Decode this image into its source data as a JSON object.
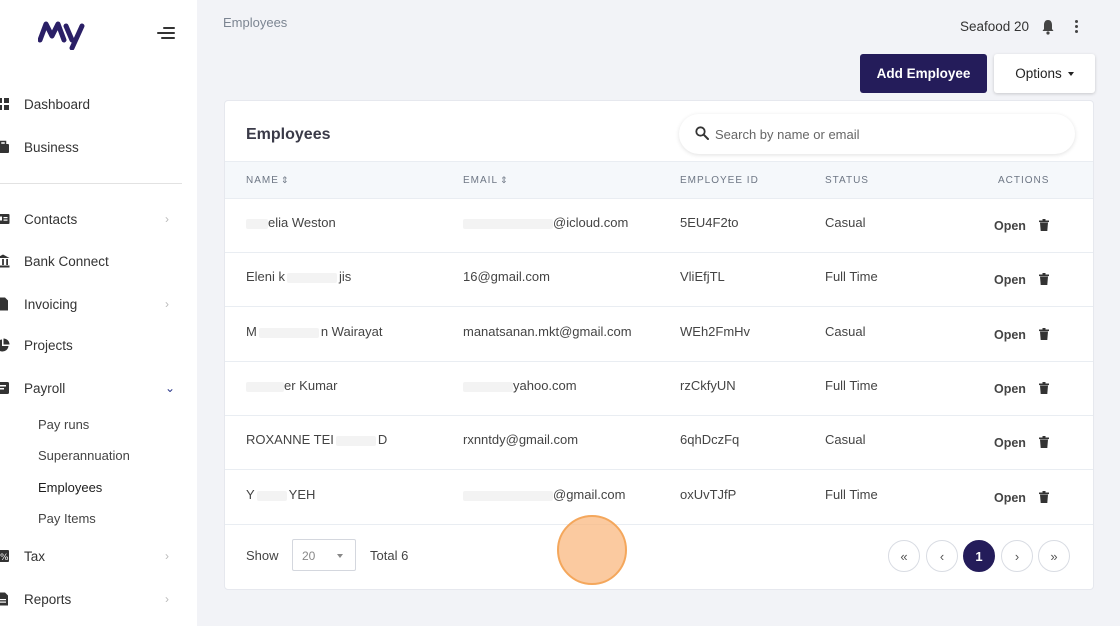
{
  "header": {
    "breadcrumb": "Employees",
    "company": "Seafood 20",
    "add_button": "Add Employee",
    "options_button": "Options"
  },
  "sidebar": {
    "items": [
      {
        "label": "Dashboard",
        "icon": "grid-icon"
      },
      {
        "label": "Business",
        "icon": "briefcase-icon"
      },
      {
        "label": "Contacts",
        "icon": "id-card-icon"
      },
      {
        "label": "Bank Connect",
        "icon": "bank-icon"
      },
      {
        "label": "Invoicing",
        "icon": "document-icon"
      },
      {
        "label": "Projects",
        "icon": "pie-chart-icon"
      },
      {
        "label": "Payroll",
        "icon": "payroll-icon"
      },
      {
        "label": "Tax",
        "icon": "tax-icon"
      },
      {
        "label": "Reports",
        "icon": "report-icon"
      }
    ],
    "payroll_sub": [
      "Pay runs",
      "Superannuation",
      "Employees",
      "Pay Items"
    ],
    "active_sub": "Employees"
  },
  "card": {
    "title": "Employees",
    "search_placeholder": "Search by name or email"
  },
  "table": {
    "columns": [
      "NAME",
      "EMAIL",
      "EMPLOYEE ID",
      "STATUS",
      "ACTIONS"
    ],
    "open_label": "Open",
    "rows": [
      {
        "name": "elia Weston",
        "email": "@icloud.com",
        "id": "5EU4F2to",
        "status": "Casual"
      },
      {
        "name": "Eleni k",
        "email": "16@gmail.com",
        "id": "VliEfjTL",
        "status": "Full Time"
      },
      {
        "name": "M",
        "email": "manatsanan.mkt@gmail.com",
        "id": "WEh2FmHv",
        "status": "Casual"
      },
      {
        "name": "er Kumar",
        "email": "yahoo.com",
        "id": "rzCkfyUN",
        "status": "Full Time"
      },
      {
        "name": "ROXANNE TEI",
        "email": "rxnntdy@gmail.com",
        "id": "6qhDczFq",
        "status": "Casual"
      },
      {
        "name": "Y",
        "email": "@gmail.com",
        "id": "oxUvTJfP",
        "status": "Full Time"
      }
    ],
    "name_suffixes": [
      "",
      "jis",
      "n Wairayat",
      "",
      "D",
      "YEH"
    ]
  },
  "footer": {
    "show_label": "Show",
    "page_size": "20",
    "total_label": "Total 6",
    "current_page": "1",
    "first_icon": "«",
    "prev_icon": "‹",
    "next_icon": "›",
    "last_icon": "»"
  },
  "colors": {
    "primary": "#241c5a",
    "accent": "#2e3a8c",
    "touch": "#f4a75c"
  }
}
